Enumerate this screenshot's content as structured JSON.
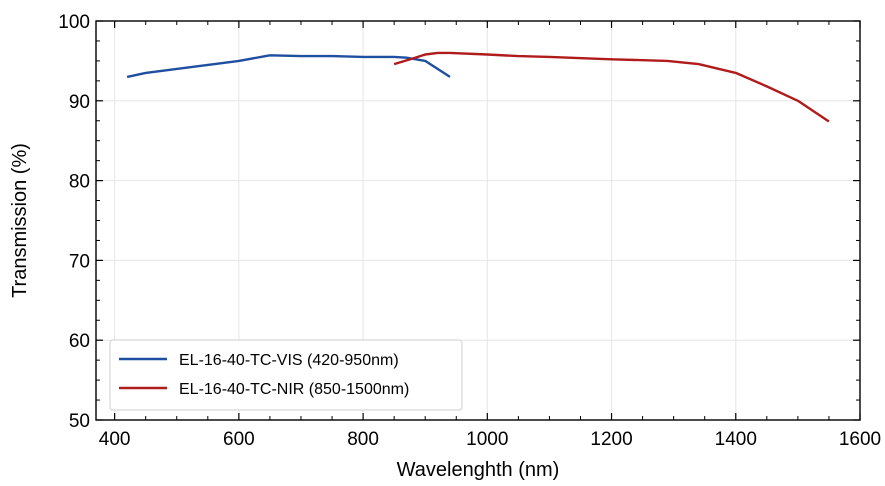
{
  "chart_data": {
    "type": "line",
    "title": "",
    "xlabel": "Wavelenghth (nm)",
    "ylabel": "Transmission (%)",
    "xlim": [
      370,
      1600
    ],
    "ylim": [
      50,
      100
    ],
    "xticks": [
      400,
      600,
      800,
      1000,
      1200,
      1400,
      1600
    ],
    "yticks": [
      50,
      60,
      70,
      80,
      90,
      100
    ],
    "grid": true,
    "legend_position": "bottom-left",
    "series": [
      {
        "name": "EL-16-40-TC-VIS (420-950nm)",
        "color": "#1f4fa0",
        "x": [
          420,
          450,
          500,
          600,
          650,
          700,
          750,
          800,
          850,
          870,
          900,
          940
        ],
        "y": [
          93.0,
          93.5,
          94.0,
          95.0,
          95.7,
          95.6,
          95.6,
          95.5,
          95.5,
          95.4,
          95.0,
          93.0
        ]
      },
      {
        "name": "EL-16-40-TC-NIR (850-1500nm)",
        "color": "#b01c1c",
        "x": [
          850,
          880,
          900,
          920,
          940,
          1000,
          1050,
          1100,
          1200,
          1290,
          1340,
          1400,
          1450,
          1500,
          1550
        ],
        "y": [
          94.6,
          95.3,
          95.8,
          96.0,
          96.0,
          95.8,
          95.6,
          95.5,
          95.2,
          95.0,
          94.6,
          93.5,
          91.8,
          90.0,
          87.4
        ]
      }
    ]
  }
}
